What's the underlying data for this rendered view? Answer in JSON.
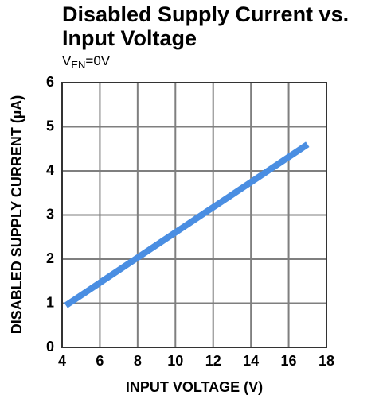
{
  "chart_data": {
    "type": "line",
    "title": [
      "Disabled Supply Current vs.",
      "Input Voltage"
    ],
    "subtitle": [
      "V",
      "EN",
      "=0V"
    ],
    "xlabel": "INPUT VOLTAGE (V)",
    "ylabel": "DISABLED SUPPLY CURRENT (µA)",
    "x": [
      4.2,
      17
    ],
    "series": [
      {
        "color": "#4a8ee2",
        "values": [
          0.95,
          4.6
        ]
      }
    ],
    "xlim": [
      4,
      18
    ],
    "xticks": [
      4,
      6,
      8,
      10,
      12,
      14,
      16,
      18
    ],
    "ylim": [
      0,
      6
    ],
    "yticks": [
      0,
      1,
      2,
      3,
      4,
      5,
      6
    ],
    "grid": true
  }
}
